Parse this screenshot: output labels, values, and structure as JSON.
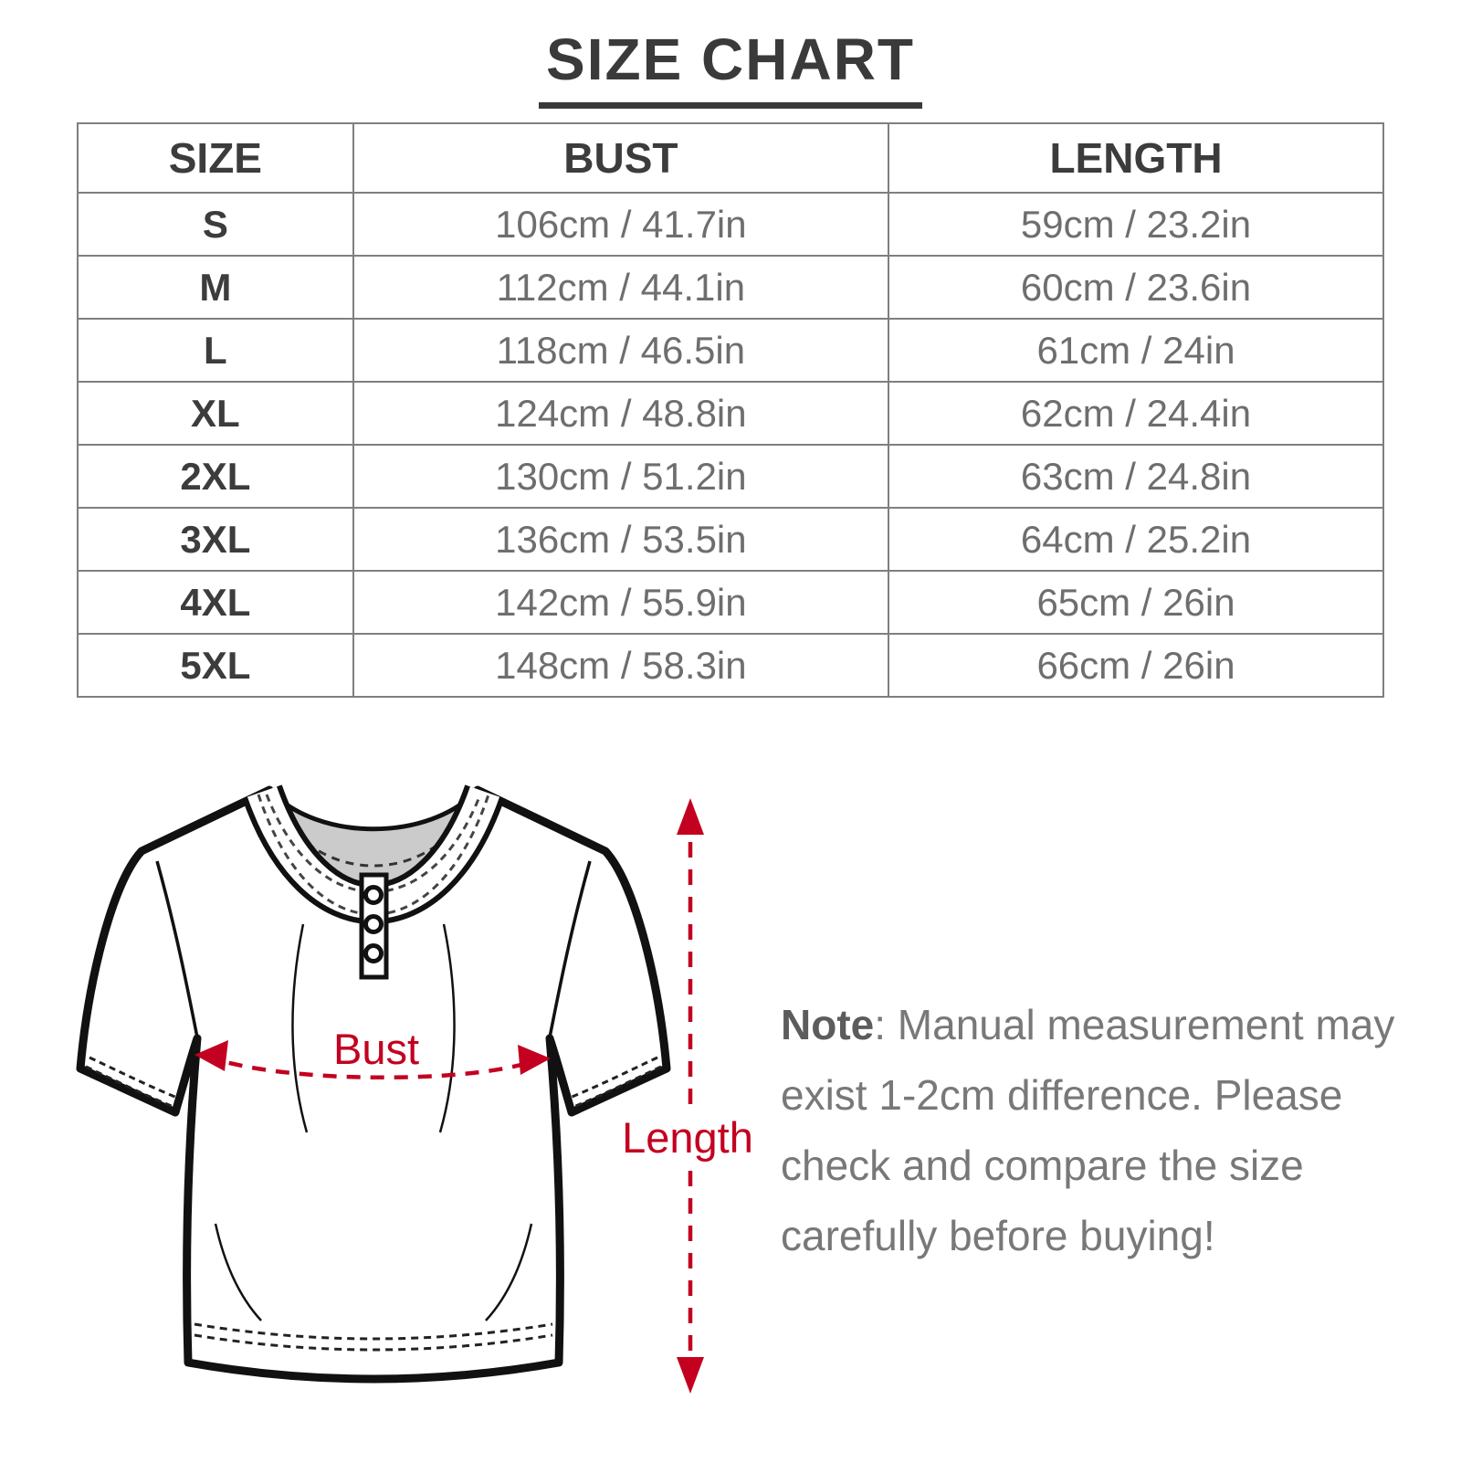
{
  "title": "SIZE CHART",
  "size_table": {
    "headers": [
      "SIZE",
      "BUST",
      "LENGTH"
    ],
    "rows": [
      {
        "size": "S",
        "bust": "106cm / 41.7in",
        "length": "59cm / 23.2in"
      },
      {
        "size": "M",
        "bust": "112cm / 44.1in",
        "length": "60cm / 23.6in"
      },
      {
        "size": "L",
        "bust": "118cm / 46.5in",
        "length": "61cm / 24in"
      },
      {
        "size": "XL",
        "bust": "124cm / 48.8in",
        "length": "62cm / 24.4in"
      },
      {
        "size": "2XL",
        "bust": "130cm / 51.2in",
        "length": "63cm / 24.8in"
      },
      {
        "size": "3XL",
        "bust": "136cm / 53.5in",
        "length": "64cm / 25.2in"
      },
      {
        "size": "4XL",
        "bust": "142cm / 55.9in",
        "length": "65cm / 26in"
      },
      {
        "size": "5XL",
        "bust": "148cm / 58.3in",
        "length": "66cm / 26in"
      }
    ]
  },
  "diagram": {
    "bust_label": "Bust",
    "length_label": "Length",
    "annotation_color": "#c30020",
    "outline_color": "#111111",
    "collar_fill": "#cbcbcb"
  },
  "note": {
    "label": "Note",
    "text": ": Manual measurement may exist 1-2cm difference. Please check and compare the size carefully before buying!"
  }
}
